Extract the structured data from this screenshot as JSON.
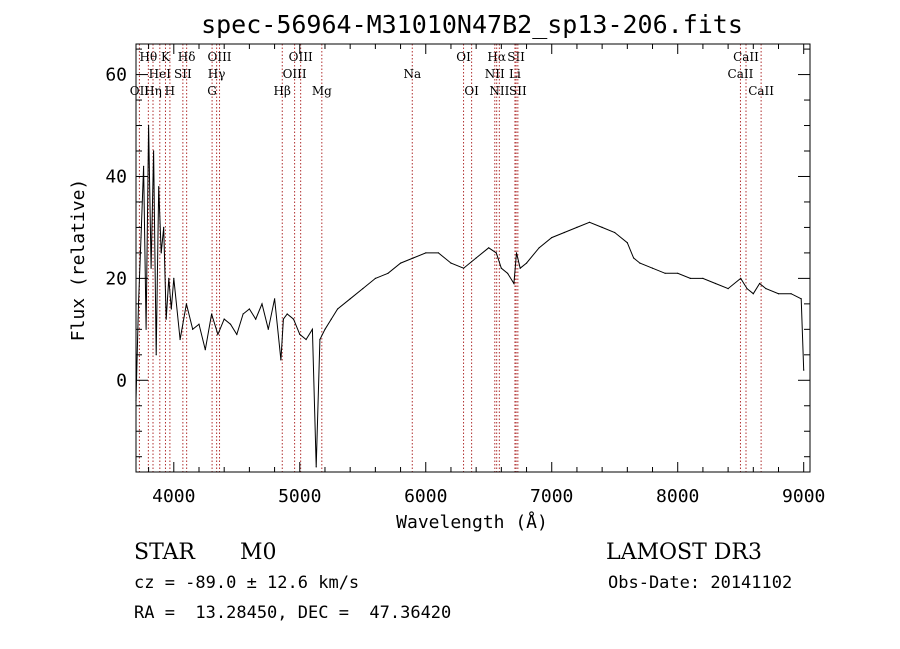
{
  "chart_data": {
    "type": "line",
    "title": "spec-56964-M31010N47B2_sp13-206.fits",
    "xlabel": "Wavelength (Å)",
    "ylabel": "Flux (relative)",
    "xlim": [
      3700,
      9050
    ],
    "ylim": [
      -18,
      66
    ],
    "x_ticks": [
      4000,
      5000,
      6000,
      7000,
      8000,
      9000
    ],
    "y_ticks": [
      0,
      20,
      40,
      60
    ],
    "x_tick_labels": [
      "4000",
      "5000",
      "6000",
      "7000",
      "8000",
      "9000"
    ],
    "y_tick_labels": [
      "0",
      "20",
      "40",
      "60"
    ],
    "grid": false,
    "series": [
      {
        "name": "spectrum",
        "color": "#000000",
        "x": [
          3700,
          3720,
          3740,
          3760,
          3780,
          3800,
          3820,
          3840,
          3860,
          3880,
          3900,
          3920,
          3940,
          3960,
          3980,
          4000,
          4050,
          4100,
          4150,
          4200,
          4250,
          4300,
          4350,
          4400,
          4450,
          4500,
          4550,
          4600,
          4650,
          4700,
          4750,
          4800,
          4850,
          4870,
          4900,
          4950,
          5000,
          5050,
          5100,
          5130,
          5160,
          5200,
          5250,
          5300,
          5400,
          5500,
          5600,
          5700,
          5800,
          5900,
          6000,
          6100,
          6200,
          6300,
          6400,
          6500,
          6560,
          6600,
          6650,
          6700,
          6720,
          6750,
          6800,
          6900,
          7000,
          7100,
          7200,
          7300,
          7400,
          7500,
          7600,
          7650,
          7700,
          7800,
          7900,
          8000,
          8100,
          8200,
          8300,
          8400,
          8500,
          8550,
          8600,
          8650,
          8700,
          8800,
          8900,
          8980,
          9000
        ],
        "values": [
          -4,
          15,
          28,
          42,
          10,
          50,
          22,
          45,
          5,
          38,
          25,
          30,
          12,
          20,
          14,
          20,
          8,
          15,
          10,
          11,
          6,
          13,
          9,
          12,
          11,
          9,
          13,
          14,
          12,
          15,
          10,
          16,
          4,
          12,
          13,
          12,
          9,
          8,
          10,
          -17,
          8,
          10,
          12,
          14,
          16,
          18,
          20,
          21,
          23,
          24,
          25,
          25,
          23,
          22,
          24,
          26,
          25,
          22,
          21,
          19,
          25,
          22,
          23,
          26,
          28,
          29,
          30,
          31,
          30,
          29,
          27,
          24,
          23,
          22,
          21,
          21,
          20,
          20,
          19,
          18,
          20,
          18,
          17,
          19,
          18,
          17,
          17,
          16,
          2
        ]
      }
    ],
    "line_markers": [
      {
        "label": "Hθ",
        "x": 3798,
        "row": 1
      },
      {
        "label": "OII",
        "x": 3727,
        "row": 3
      },
      {
        "label": "HeI",
        "x": 3889,
        "row": 2
      },
      {
        "label": "K",
        "x": 3934,
        "row": 1
      },
      {
        "label": "Hη",
        "x": 3835,
        "row": 3
      },
      {
        "label": "H",
        "x": 3969,
        "row": 3
      },
      {
        "label": "SII",
        "x": 4072,
        "row": 2
      },
      {
        "label": "Hδ",
        "x": 4102,
        "row": 1
      },
      {
        "label": "OIII",
        "x": 4363,
        "row": 1
      },
      {
        "label": "Hγ",
        "x": 4340,
        "row": 2
      },
      {
        "label": "G",
        "x": 4304,
        "row": 3
      },
      {
        "label": "OIII",
        "x": 5007,
        "row": 1
      },
      {
        "label": "OIII",
        "x": 4959,
        "row": 2
      },
      {
        "label": "Hβ",
        "x": 4861,
        "row": 3
      },
      {
        "label": "Mg",
        "x": 5175,
        "row": 3
      },
      {
        "label": "Na",
        "x": 5893,
        "row": 2
      },
      {
        "label": "OI",
        "x": 6300,
        "row": 1
      },
      {
        "label": "OI",
        "x": 6364,
        "row": 3
      },
      {
        "label": "Hα",
        "x": 6563,
        "row": 1
      },
      {
        "label": "NII",
        "x": 6548,
        "row": 2
      },
      {
        "label": "NII",
        "x": 6584,
        "row": 3
      },
      {
        "label": "SII",
        "x": 6717,
        "row": 1
      },
      {
        "label": "Li",
        "x": 6708,
        "row": 2
      },
      {
        "label": "SII",
        "x": 6731,
        "row": 3
      },
      {
        "label": "CaII",
        "x": 8542,
        "row": 1
      },
      {
        "label": "CaII",
        "x": 8498,
        "row": 2
      },
      {
        "label": "CaII",
        "x": 8662,
        "row": 3
      }
    ]
  },
  "info": {
    "object_class": "STAR",
    "subclass": "M0",
    "survey": "LAMOST DR3",
    "cz": "cz = -89.0 ± 12.6 km/s",
    "obs_date": "Obs-Date: 20141102",
    "coords": "RA =  13.28450, DEC =  47.36420"
  },
  "colors": {
    "marker_line": "#b03030",
    "axes": "#000000"
  }
}
